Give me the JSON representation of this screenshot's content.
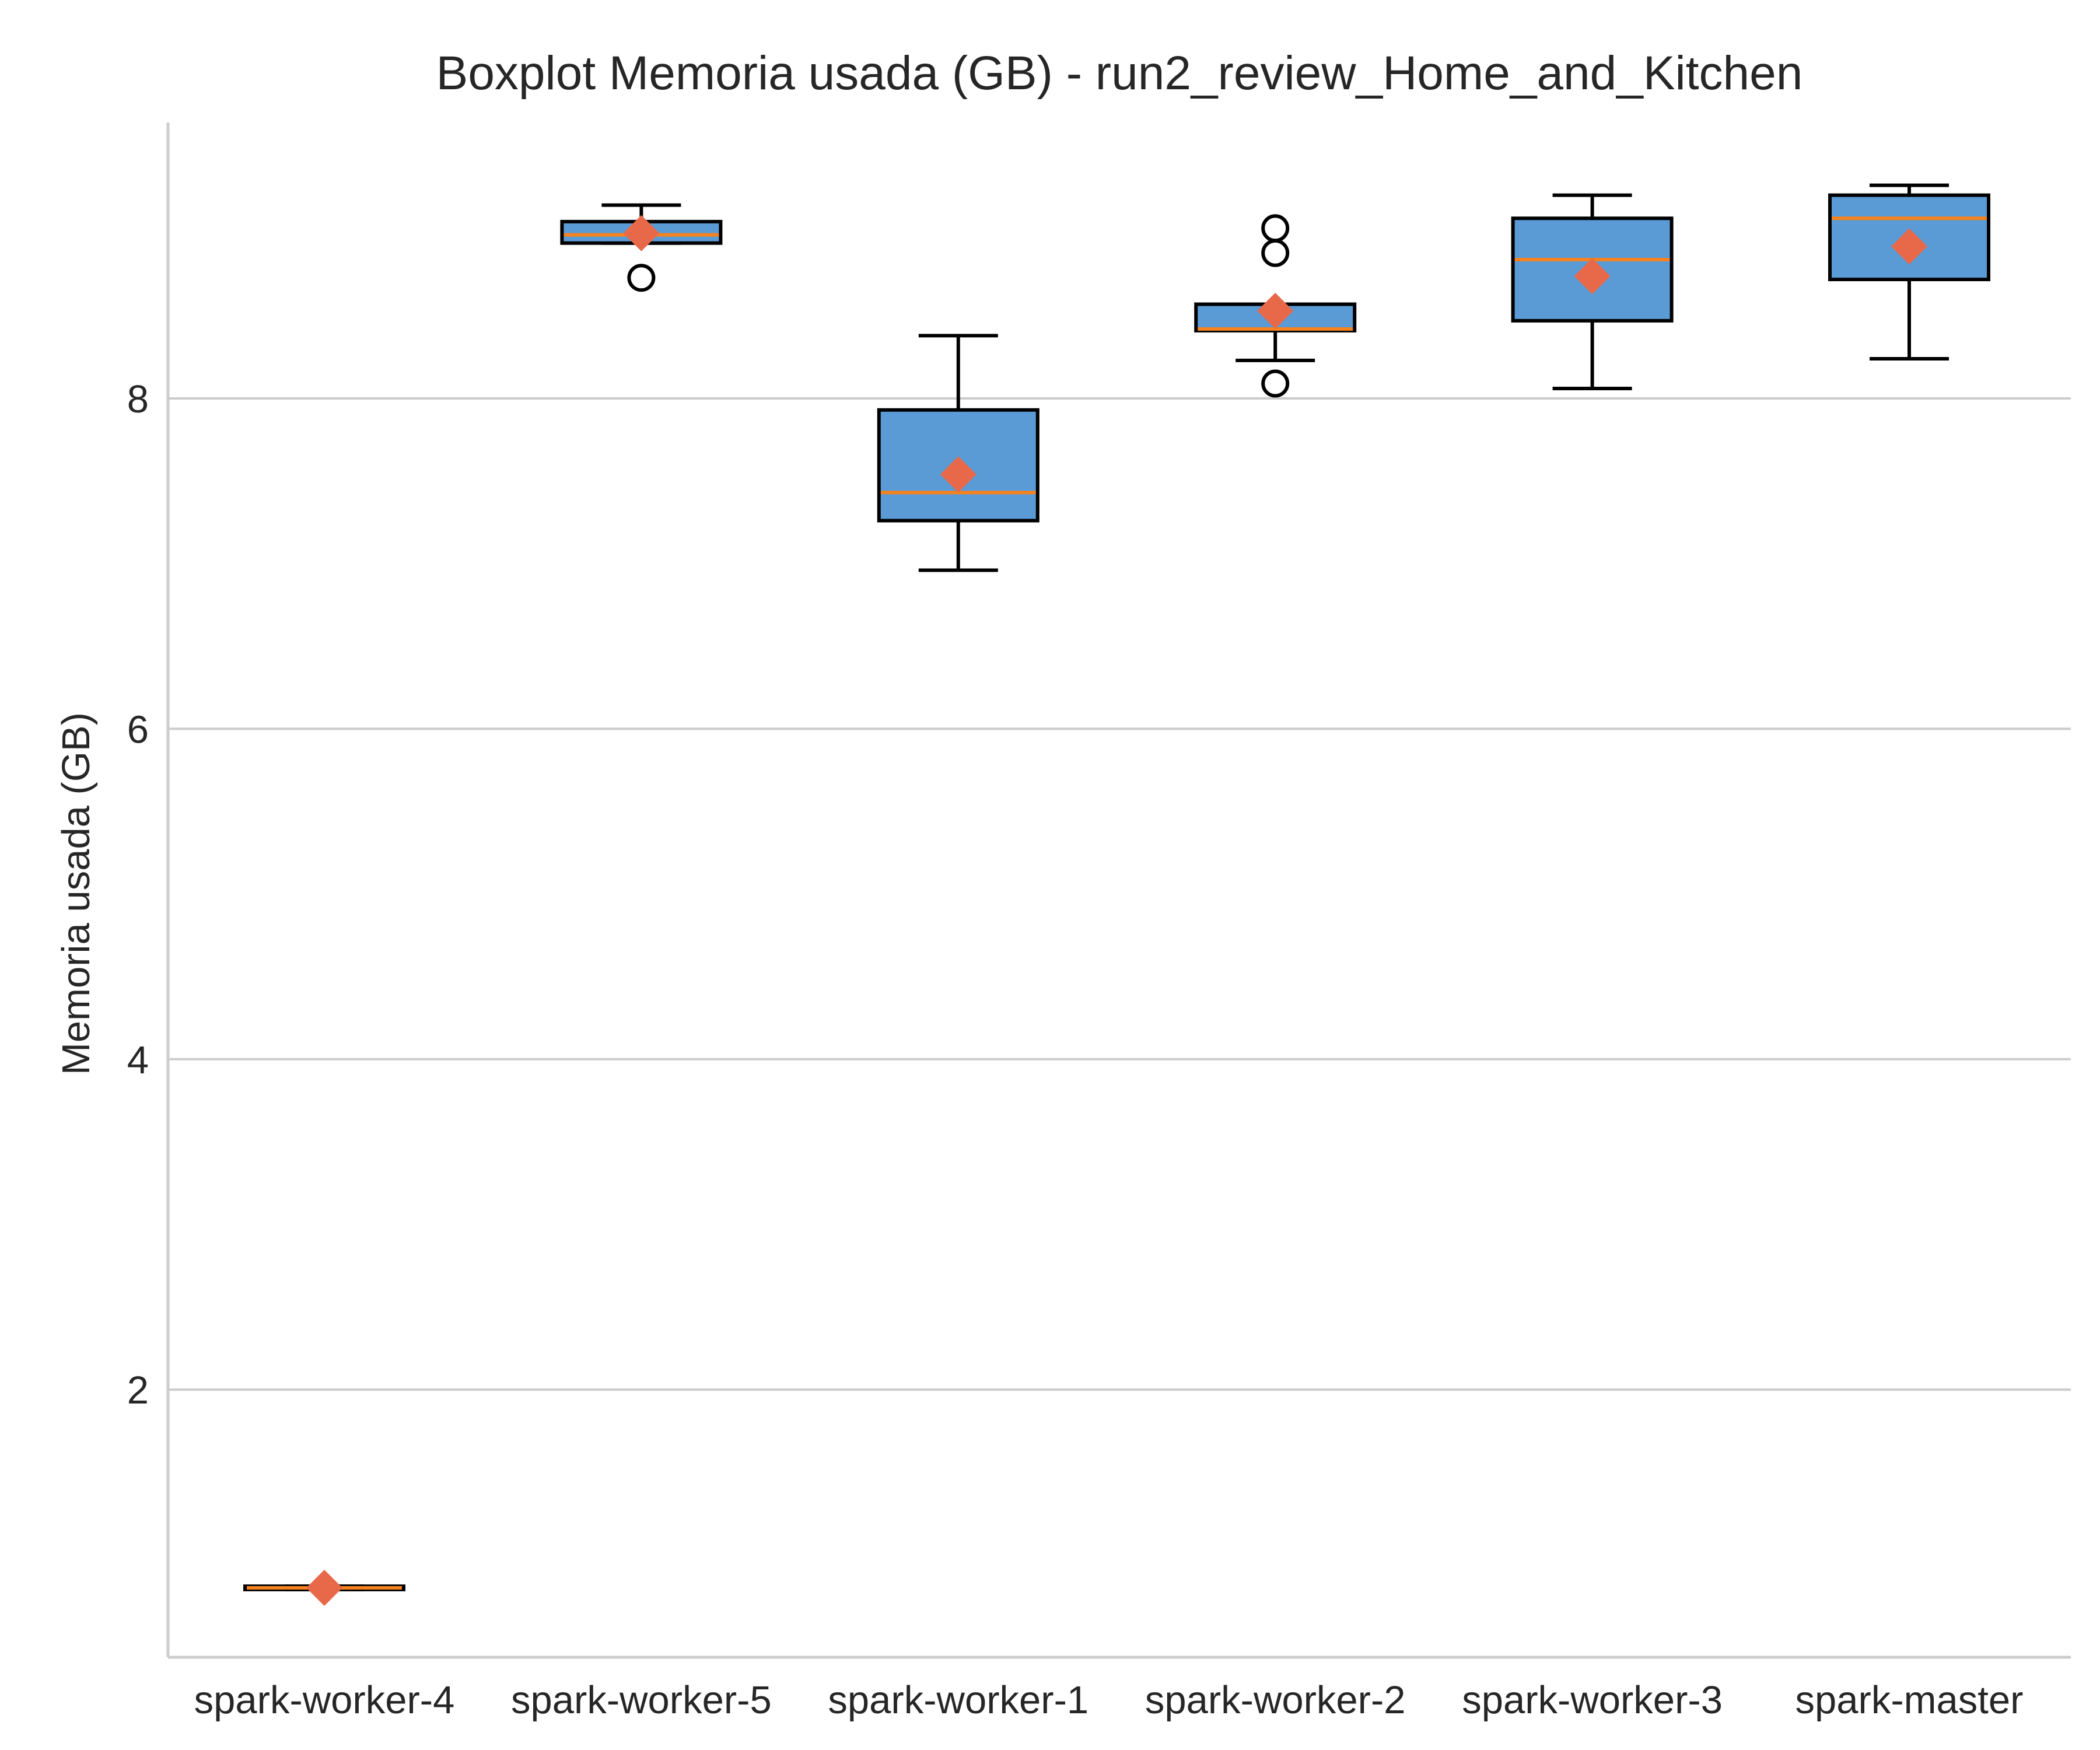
{
  "chart_data": {
    "type": "boxplot",
    "title": "Boxplot Memoria usada (GB) - run2_review_Home_and_Kitchen",
    "xlabel": "",
    "ylabel": "Memoria usada (GB)",
    "ylim": [
      0.38,
      9.67
    ],
    "yticks": [
      2,
      4,
      6,
      8
    ],
    "grid": "horizontal",
    "colors": {
      "box_fill": "#5b9bd5",
      "box_edge": "#000000",
      "median": "#f5821f",
      "mean_marker": "#e8694a",
      "grid": "#cccccc",
      "spine": "#cccccc"
    },
    "categories": [
      "spark-worker-4",
      "spark-worker-5",
      "spark-worker-1",
      "spark-worker-2",
      "spark-worker-3",
      "spark-master"
    ],
    "boxes": [
      {
        "label": "spark-worker-4",
        "whislo": 0.79,
        "q1": 0.79,
        "med": 0.8,
        "q3": 0.81,
        "whishi": 0.81,
        "mean": 0.8,
        "fliers": []
      },
      {
        "label": "spark-worker-5",
        "whislo": 8.94,
        "q1": 8.94,
        "med": 8.99,
        "q3": 9.07,
        "whishi": 9.17,
        "mean": 9.0,
        "fliers": [
          8.73
        ]
      },
      {
        "label": "spark-worker-1",
        "whislo": 6.96,
        "q1": 7.26,
        "med": 7.43,
        "q3": 7.93,
        "whishi": 8.38,
        "mean": 7.54,
        "fliers": []
      },
      {
        "label": "spark-worker-2",
        "whislo": 8.23,
        "q1": 8.41,
        "med": 8.42,
        "q3": 8.57,
        "whishi": 8.57,
        "mean": 8.53,
        "fliers": [
          8.09,
          8.88,
          9.03
        ]
      },
      {
        "label": "spark-worker-3",
        "whislo": 8.06,
        "q1": 8.47,
        "med": 8.84,
        "q3": 9.09,
        "whishi": 9.23,
        "mean": 8.74,
        "fliers": []
      },
      {
        "label": "spark-master",
        "whislo": 8.24,
        "q1": 8.72,
        "med": 9.09,
        "q3": 9.23,
        "whishi": 9.29,
        "mean": 8.92,
        "fliers": []
      }
    ]
  }
}
